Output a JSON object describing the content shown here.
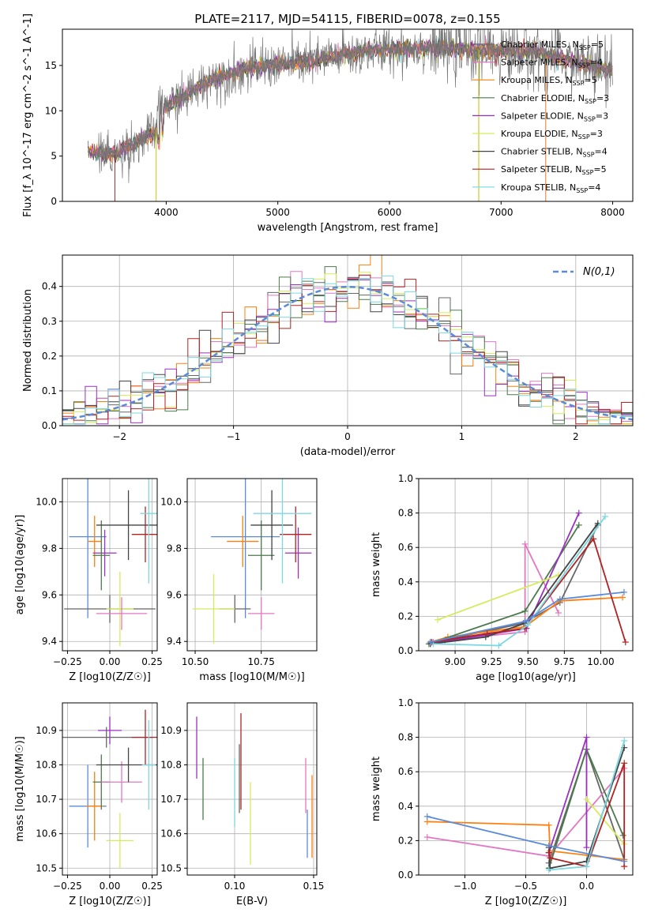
{
  "title": "PLATE=2117, MJD=54115, FIBERID=0078, z=0.155",
  "series": [
    {
      "name": "Chabrier MILES, N",
      "nssp": "5",
      "color": "#666666"
    },
    {
      "name": "Salpeter MILES, N",
      "nssp": "4",
      "color": "#e377c2"
    },
    {
      "name": "Kroupa MILES, N",
      "nssp": "5",
      "color": "#ff7f0e"
    },
    {
      "name": "Chabrier ELODIE, N",
      "nssp": "3",
      "color": "#4c7a4c"
    },
    {
      "name": "Salpeter ELODIE, N",
      "nssp": "3",
      "color": "#9b30c0"
    },
    {
      "name": "Kroupa ELODIE, N",
      "nssp": "3",
      "color": "#d4ec5c"
    },
    {
      "name": "Chabrier STELIB, N",
      "nssp": "4",
      "color": "#444444"
    },
    {
      "name": "Salpeter STELIB, N",
      "nssp": "5",
      "color": "#b22222"
    },
    {
      "name": "Kroupa STELIB, N",
      "nssp": "4",
      "color": "#7ad8e0"
    }
  ],
  "extra_color": "#5b8bd8",
  "chart_data": [
    {
      "id": "spectrum",
      "type": "line",
      "xlabel": "wavelength [Angstrom, rest frame]",
      "ylabel": "Flux [f_λ 10^-17 erg cm^-2 s^-1 A^-1]",
      "xlim": [
        3070,
        8180
      ],
      "ylim": [
        0,
        19
      ],
      "xticks": [
        4000,
        5000,
        6000,
        7000,
        8000
      ],
      "yticks": [
        0,
        5,
        10,
        15
      ],
      "x_range": [
        3300,
        8000
      ],
      "continuum": [
        [
          3300,
          5.6
        ],
        [
          3550,
          5.1
        ],
        [
          3650,
          6.0
        ],
        [
          3900,
          7.6
        ],
        [
          3950,
          10.2
        ],
        [
          4150,
          11.5
        ],
        [
          4400,
          13.5
        ],
        [
          4800,
          14.8
        ],
        [
          5300,
          15.5
        ],
        [
          5800,
          16.6
        ],
        [
          6300,
          17.0
        ],
        [
          6700,
          16.8
        ],
        [
          7300,
          16.5
        ],
        [
          7800,
          15.0
        ],
        [
          8000,
          14.3
        ]
      ]
    },
    {
      "id": "residuals",
      "type": "histogram",
      "xlabel": "(data-model)/error",
      "ylabel": "Normed distribution",
      "xlim": [
        -2.5,
        2.5
      ],
      "ylim": [
        0,
        0.49
      ],
      "xticks": [
        -2,
        -1,
        0,
        1,
        2
      ],
      "yticks": [
        0.0,
        0.1,
        0.2,
        0.3,
        0.4
      ],
      "bin_width": 0.1,
      "gaussian_label": "N(0,1)"
    },
    {
      "id": "age-vs-z",
      "type": "errorbar",
      "xlabel": "Z [log10(Z/Z☉)]",
      "ylabel": "age  [log10(age/yr)]",
      "xlim": [
        -0.28,
        0.28
      ],
      "ylim": [
        9.36,
        10.1
      ],
      "xticks": [
        -0.25,
        0.0,
        0.25
      ],
      "yticks": [
        9.4,
        9.6,
        9.8,
        10.0
      ],
      "points": [
        {
          "s": 9,
          "x": -0.13,
          "xe": 0.11,
          "y": 9.85,
          "ye": 0.35
        },
        {
          "s": 2,
          "x": -0.09,
          "xe": 0.04,
          "y": 9.83,
          "ye": 0.11
        },
        {
          "s": 4,
          "x": -0.03,
          "xe": 0.07,
          "y": 9.78,
          "ye": 0.1
        },
        {
          "s": 3,
          "x": -0.05,
          "xe": 0.05,
          "y": 9.77,
          "ye": 0.15
        },
        {
          "s": 0,
          "x": 0.0,
          "xe": 0.27,
          "y": 9.54,
          "ye": 0.06
        },
        {
          "s": 5,
          "x": 0.06,
          "xe": 0.08,
          "y": 9.54,
          "ye": 0.16
        },
        {
          "s": 1,
          "x": 0.07,
          "xe": 0.15,
          "y": 9.52,
          "ye": 0.07
        },
        {
          "s": 6,
          "x": 0.11,
          "xe": 0.19,
          "y": 9.9,
          "ye": 0.15
        },
        {
          "s": 7,
          "x": 0.21,
          "xe": 0.08,
          "y": 9.86,
          "ye": 0.12
        },
        {
          "s": 8,
          "x": 0.23,
          "xe": 0.05,
          "y": 9.95,
          "ye": 0.3
        }
      ]
    },
    {
      "id": "age-vs-mass",
      "type": "errorbar",
      "xlabel": "mass [log10(M/M☉)]",
      "xlim": [
        10.47,
        10.96
      ],
      "ylim": [
        9.36,
        10.1
      ],
      "xticks": [
        10.5,
        10.75
      ],
      "yticks": [
        9.4,
        9.6,
        9.8,
        10.0
      ],
      "points": [
        {
          "s": 9,
          "x": 10.69,
          "xe": 0.13,
          "y": 9.85,
          "ye": 0.35
        },
        {
          "s": 2,
          "x": 10.68,
          "xe": 0.06,
          "y": 9.83,
          "ye": 0.11
        },
        {
          "s": 4,
          "x": 10.89,
          "xe": 0.05,
          "y": 9.78,
          "ye": 0.11
        },
        {
          "s": 3,
          "x": 10.75,
          "xe": 0.05,
          "y": 9.77,
          "ye": 0.15
        },
        {
          "s": 0,
          "x": 10.65,
          "xe": 0.06,
          "y": 9.54,
          "ye": 0.06
        },
        {
          "s": 5,
          "x": 10.57,
          "xe": 0.08,
          "y": 9.54,
          "ye": 0.15
        },
        {
          "s": 1,
          "x": 10.75,
          "xe": 0.05,
          "y": 9.52,
          "ye": 0.07
        },
        {
          "s": 6,
          "x": 10.79,
          "xe": 0.08,
          "y": 9.9,
          "ye": 0.15
        },
        {
          "s": 7,
          "x": 10.88,
          "xe": 0.06,
          "y": 9.86,
          "ye": 0.12
        },
        {
          "s": 8,
          "x": 10.83,
          "xe": 0.11,
          "y": 9.95,
          "ye": 0.3
        }
      ]
    },
    {
      "id": "weight-vs-age",
      "type": "line",
      "xlabel": "age  [log10(age/yr)]",
      "ylabel": "mass weight",
      "xlim": [
        8.75,
        10.22
      ],
      "ylim": [
        0,
        1.0
      ],
      "xticks": [
        9.0,
        9.25,
        9.5,
        9.75,
        10.0
      ],
      "yticks": [
        0.0,
        0.2,
        0.4,
        0.6,
        0.8,
        1.0
      ],
      "lines": [
        {
          "s": 0,
          "pts": [
            [
              8.83,
              0.05
            ],
            [
              8.97,
              0.07
            ],
            [
              9.47,
              0.16
            ],
            [
              9.72,
              0.28
            ],
            [
              9.98,
              0.73
            ]
          ]
        },
        {
          "s": 1,
          "pts": [
            [
              8.85,
              0.05
            ],
            [
              8.93,
              0.06
            ],
            [
              9.48,
              0.11
            ],
            [
              9.48,
              0.62
            ],
            [
              9.71,
              0.22
            ]
          ]
        },
        {
          "s": 2,
          "pts": [
            [
              8.83,
              0.05
            ],
            [
              8.95,
              0.08
            ],
            [
              9.48,
              0.14
            ],
            [
              9.72,
              0.29
            ],
            [
              10.15,
              0.31
            ]
          ]
        },
        {
          "s": 3,
          "pts": [
            [
              8.82,
              0.04
            ],
            [
              9.48,
              0.23
            ],
            [
              9.85,
              0.73
            ]
          ]
        },
        {
          "s": 4,
          "pts": [
            [
              8.83,
              0.04
            ],
            [
              9.49,
              0.13
            ],
            [
              9.85,
              0.8
            ]
          ]
        },
        {
          "s": 5,
          "pts": [
            [
              8.88,
              0.18
            ],
            [
              9.71,
              0.44
            ]
          ]
        },
        {
          "s": 6,
          "pts": [
            [
              8.83,
              0.04
            ],
            [
              9.21,
              0.08
            ],
            [
              9.48,
              0.16
            ],
            [
              9.98,
              0.74
            ]
          ]
        },
        {
          "s": 7,
          "pts": [
            [
              8.84,
              0.05
            ],
            [
              9.22,
              0.1
            ],
            [
              9.48,
              0.13
            ],
            [
              9.95,
              0.65
            ],
            [
              10.17,
              0.05
            ]
          ]
        },
        {
          "s": 8,
          "pts": [
            [
              8.85,
              0.04
            ],
            [
              9.3,
              0.03
            ],
            [
              9.5,
              0.15
            ],
            [
              10.03,
              0.78
            ]
          ]
        },
        {
          "s": 9,
          "pts": [
            [
              8.83,
              0.05
            ],
            [
              9.48,
              0.17
            ],
            [
              9.72,
              0.3
            ],
            [
              10.16,
              0.34
            ]
          ]
        }
      ]
    },
    {
      "id": "mass-vs-z",
      "type": "errorbar",
      "xlabel": "Z [log10(Z/Z☉)]",
      "ylabel": "mass [log10(M/M☉)]",
      "xlim": [
        -0.28,
        0.28
      ],
      "ylim": [
        10.48,
        10.98
      ],
      "xticks": [
        -0.25,
        0.0,
        0.25
      ],
      "yticks": [
        10.5,
        10.6,
        10.7,
        10.8,
        10.9
      ],
      "points": [
        {
          "s": 9,
          "x": -0.13,
          "xe": 0.11,
          "y": 10.68,
          "ye": 0.12
        },
        {
          "s": 2,
          "x": -0.09,
          "xe": 0.05,
          "y": 10.68,
          "ye": 0.1
        },
        {
          "s": 3,
          "x": -0.05,
          "xe": 0.05,
          "y": 10.75,
          "ye": 0.08
        },
        {
          "s": 4,
          "x": 0.0,
          "xe": 0.07,
          "y": 10.9,
          "ye": 0.04
        },
        {
          "s": 0,
          "x": -0.02,
          "xe": 0.27,
          "y": 10.88,
          "ye": 0.03
        },
        {
          "s": 5,
          "x": 0.06,
          "xe": 0.08,
          "y": 10.58,
          "ye": 0.08
        },
        {
          "s": 1,
          "x": 0.07,
          "xe": 0.12,
          "y": 10.75,
          "ye": 0.06
        },
        {
          "s": 6,
          "x": 0.11,
          "xe": 0.19,
          "y": 10.8,
          "ye": 0.05
        },
        {
          "s": 7,
          "x": 0.21,
          "xe": 0.08,
          "y": 10.88,
          "ye": 0.08
        },
        {
          "s": 8,
          "x": 0.23,
          "xe": 0.04,
          "y": 10.8,
          "ye": 0.13
        }
      ]
    },
    {
      "id": "mass-vs-ebv",
      "type": "errorbar",
      "xlabel": "E(B-V)",
      "xlim": [
        0.07,
        0.152
      ],
      "ylim": [
        10.48,
        10.98
      ],
      "xticks": [
        0.05,
        0.1,
        0.15
      ],
      "yticks": [
        10.5,
        10.6,
        10.7,
        10.8,
        10.9
      ],
      "points": [
        {
          "s": 4,
          "x": 0.076,
          "xe": 0.0,
          "y": 10.85,
          "ye": 0.09
        },
        {
          "s": 3,
          "x": 0.08,
          "xe": 0.0,
          "y": 10.73,
          "ye": 0.09
        },
        {
          "s": 0,
          "x": 0.103,
          "xe": 0.0,
          "y": 10.76,
          "ye": 0.1
        },
        {
          "s": 7,
          "x": 0.104,
          "xe": 0.0,
          "y": 10.81,
          "ye": 0.14
        },
        {
          "s": 5,
          "x": 0.11,
          "xe": 0.0,
          "y": 10.63,
          "ye": 0.12
        },
        {
          "s": 8,
          "x": 0.1,
          "xe": 0.0,
          "y": 10.72,
          "ye": 0.1
        },
        {
          "s": 1,
          "x": 0.145,
          "xe": 0.0,
          "y": 10.74,
          "ye": 0.08
        },
        {
          "s": 9,
          "x": 0.146,
          "xe": 0.0,
          "y": 10.6,
          "ye": 0.07
        },
        {
          "s": 2,
          "x": 0.149,
          "xe": 0.0,
          "y": 10.65,
          "ye": 0.12
        }
      ]
    },
    {
      "id": "weight-vs-z",
      "type": "line",
      "xlabel": "Z [log10(Z/Z☉)]",
      "ylabel": "mass weight",
      "xlim": [
        -1.38,
        0.38
      ],
      "ylim": [
        0,
        1.0
      ],
      "xticks": [
        -1.0,
        -0.5,
        0.0
      ],
      "yticks": [
        0.0,
        0.2,
        0.4,
        0.6,
        0.8,
        1.0
      ],
      "lines": [
        {
          "s": 0,
          "pts": [
            [
              -0.31,
              0.07
            ],
            [
              0.0,
              0.73
            ],
            [
              0.31,
              0.09
            ]
          ]
        },
        {
          "s": 1,
          "pts": [
            [
              -1.31,
              0.22
            ],
            [
              -0.31,
              0.11
            ],
            [
              0.31,
              0.62
            ]
          ]
        },
        {
          "s": 2,
          "pts": [
            [
              -1.31,
              0.31
            ],
            [
              -0.31,
              0.29
            ],
            [
              -0.3,
              0.14
            ],
            [
              0.31,
              0.09
            ]
          ]
        },
        {
          "s": 3,
          "pts": [
            [
              -0.31,
              0.04
            ],
            [
              0.0,
              0.73
            ],
            [
              0.3,
              0.23
            ]
          ]
        },
        {
          "s": 4,
          "pts": [
            [
              -0.31,
              0.13
            ],
            [
              0.0,
              0.8
            ],
            [
              0.0,
              0.16
            ]
          ]
        },
        {
          "s": 5,
          "pts": [
            [
              0.0,
              0.44
            ],
            [
              0.31,
              0.18
            ]
          ]
        },
        {
          "s": 6,
          "pts": [
            [
              -0.31,
              0.16
            ],
            [
              -0.3,
              0.04
            ],
            [
              0.0,
              0.08
            ],
            [
              0.31,
              0.74
            ]
          ]
        },
        {
          "s": 7,
          "pts": [
            [
              -0.31,
              0.13
            ],
            [
              -0.3,
              0.1
            ],
            [
              0.0,
              0.05
            ],
            [
              0.31,
              0.65
            ],
            [
              0.31,
              0.05
            ]
          ]
        },
        {
          "s": 8,
          "pts": [
            [
              -0.31,
              0.03
            ],
            [
              0.0,
              0.05
            ],
            [
              0.31,
              0.78
            ]
          ]
        },
        {
          "s": 9,
          "pts": [
            [
              -1.31,
              0.34
            ],
            [
              -0.31,
              0.17
            ],
            [
              0.31,
              0.08
            ]
          ]
        }
      ]
    }
  ]
}
